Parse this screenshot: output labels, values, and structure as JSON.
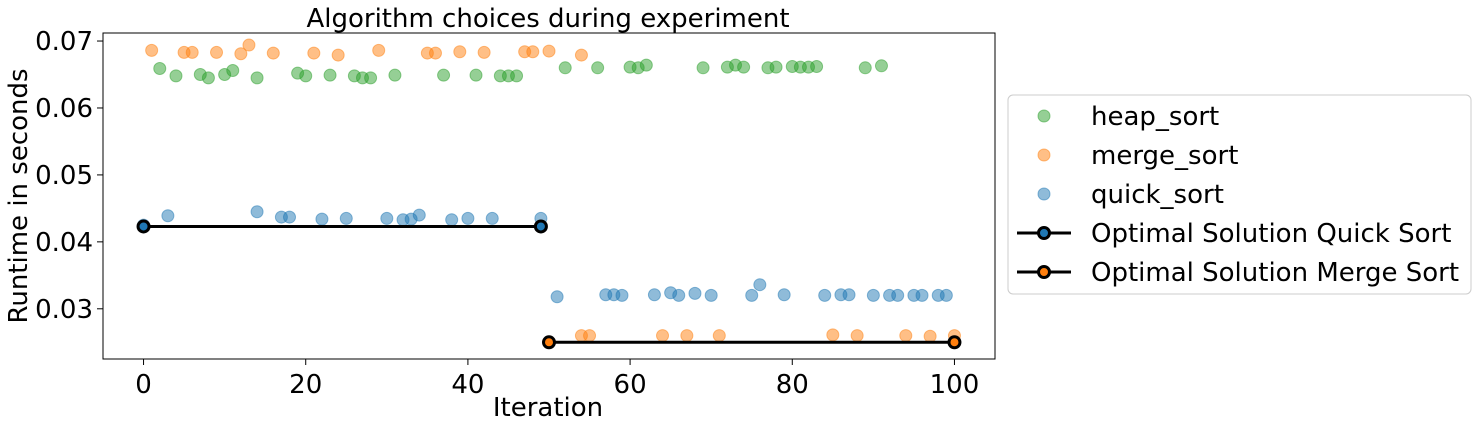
{
  "chart_data": {
    "type": "scatter",
    "title": "Algorithm choices during experiment",
    "xlabel": "Iteration",
    "ylabel": "Runtime in seconds",
    "xlim": [
      -5,
      105
    ],
    "ylim": [
      0.0225,
      0.0712
    ],
    "xticks": [
      0,
      20,
      40,
      60,
      80,
      100
    ],
    "xtick_labels": [
      "0",
      "20",
      "40",
      "60",
      "80",
      "100"
    ],
    "yticks": [
      0.03,
      0.04,
      0.05,
      0.06,
      0.07
    ],
    "ytick_labels": [
      "0.03",
      "0.04",
      "0.05",
      "0.06",
      "0.07"
    ],
    "grid": false,
    "legend_position": "outside-right",
    "series": [
      {
        "name": "heap_sort",
        "kind": "points",
        "color": "#2ca02c",
        "points": [
          [
            2,
            0.0659
          ],
          [
            4,
            0.0648
          ],
          [
            7,
            0.065
          ],
          [
            8,
            0.0645
          ],
          [
            10,
            0.065
          ],
          [
            11,
            0.0656
          ],
          [
            14,
            0.0645
          ],
          [
            19,
            0.0652
          ],
          [
            20,
            0.0648
          ],
          [
            23,
            0.0649
          ],
          [
            26,
            0.0648
          ],
          [
            27,
            0.0645
          ],
          [
            28,
            0.0645
          ],
          [
            31,
            0.0649
          ],
          [
            37,
            0.0649
          ],
          [
            41,
            0.0649
          ],
          [
            44,
            0.0648
          ],
          [
            45,
            0.0648
          ],
          [
            46,
            0.0648
          ],
          [
            52,
            0.066
          ],
          [
            56,
            0.066
          ],
          [
            60,
            0.0661
          ],
          [
            61,
            0.066
          ],
          [
            62,
            0.0664
          ],
          [
            69,
            0.066
          ],
          [
            72,
            0.0661
          ],
          [
            73,
            0.0664
          ],
          [
            74,
            0.0661
          ],
          [
            77,
            0.066
          ],
          [
            78,
            0.0661
          ],
          [
            80,
            0.0662
          ],
          [
            81,
            0.0661
          ],
          [
            82,
            0.0661
          ],
          [
            83,
            0.0662
          ],
          [
            89,
            0.066
          ],
          [
            91,
            0.0663
          ]
        ]
      },
      {
        "name": "merge_sort",
        "kind": "points",
        "color": "#ff7f0e",
        "points": [
          [
            1,
            0.0686
          ],
          [
            5,
            0.0683
          ],
          [
            6,
            0.0683
          ],
          [
            9,
            0.0683
          ],
          [
            12,
            0.0681
          ],
          [
            13,
            0.0694
          ],
          [
            16,
            0.0682
          ],
          [
            21,
            0.0682
          ],
          [
            24,
            0.0679
          ],
          [
            29,
            0.0686
          ],
          [
            35,
            0.0682
          ],
          [
            36,
            0.0682
          ],
          [
            39,
            0.0684
          ],
          [
            42,
            0.0683
          ],
          [
            47,
            0.0684
          ],
          [
            48,
            0.0684
          ],
          [
            50,
            0.0685
          ],
          [
            54,
            0.0679
          ],
          [
            54,
            0.026
          ],
          [
            55,
            0.026
          ],
          [
            64,
            0.026
          ],
          [
            67,
            0.026
          ],
          [
            71,
            0.026
          ],
          [
            85,
            0.0261
          ],
          [
            88,
            0.026
          ],
          [
            94,
            0.026
          ],
          [
            97,
            0.0259
          ],
          [
            100,
            0.026
          ]
        ]
      },
      {
        "name": "quick_sort",
        "kind": "points",
        "color": "#1f77b4",
        "points": [
          [
            0,
            0.0425
          ],
          [
            3,
            0.0439
          ],
          [
            14,
            0.0445
          ],
          [
            17,
            0.0437
          ],
          [
            18,
            0.0437
          ],
          [
            22,
            0.0434
          ],
          [
            25,
            0.0435
          ],
          [
            30,
            0.0435
          ],
          [
            32,
            0.0433
          ],
          [
            33,
            0.0434
          ],
          [
            34,
            0.044
          ],
          [
            38,
            0.0433
          ],
          [
            40,
            0.0435
          ],
          [
            43,
            0.0435
          ],
          [
            49,
            0.0435
          ],
          [
            51,
            0.0318
          ],
          [
            57,
            0.0321
          ],
          [
            58,
            0.0321
          ],
          [
            59,
            0.032
          ],
          [
            63,
            0.0321
          ],
          [
            65,
            0.0324
          ],
          [
            66,
            0.032
          ],
          [
            68,
            0.0323
          ],
          [
            70,
            0.032
          ],
          [
            75,
            0.032
          ],
          [
            76,
            0.0336
          ],
          [
            79,
            0.0321
          ],
          [
            84,
            0.032
          ],
          [
            86,
            0.0321
          ],
          [
            87,
            0.0321
          ],
          [
            90,
            0.032
          ],
          [
            92,
            0.032
          ],
          [
            93,
            0.032
          ],
          [
            95,
            0.032
          ],
          [
            96,
            0.032
          ],
          [
            98,
            0.032
          ],
          [
            99,
            0.032
          ]
        ]
      },
      {
        "name": "Optimal Solution Quick Sort",
        "kind": "line",
        "color": "#000000",
        "marker_color": "#1f77b4",
        "points": [
          [
            0,
            0.0423
          ],
          [
            49,
            0.0423
          ]
        ]
      },
      {
        "name": "Optimal Solution Merge Sort",
        "kind": "line",
        "color": "#000000",
        "marker_color": "#ff7f0e",
        "points": [
          [
            50,
            0.025
          ],
          [
            100,
            0.025
          ]
        ]
      }
    ]
  }
}
